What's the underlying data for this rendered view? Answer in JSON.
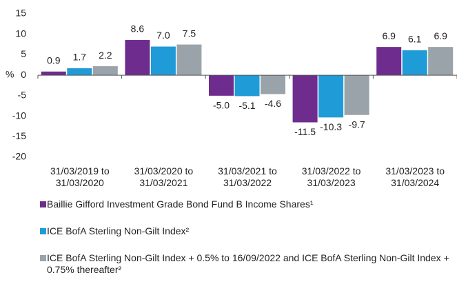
{
  "chart_data": {
    "type": "bar",
    "categories": [
      "31/03/2019 to 31/03/2020",
      "31/03/2020 to 31/03/2021",
      "31/03/2021 to 31/03/2022",
      "31/03/2022 to 31/03/2023",
      "31/03/2023 to 31/03/2024"
    ],
    "series": [
      {
        "name": "Baillie Gifford Investment Grade Bond Fund B Income Shares¹",
        "color": "#6e2c8e",
        "values": [
          0.9,
          8.6,
          -5.0,
          -11.5,
          6.9
        ]
      },
      {
        "name": "ICE BofA Sterling Non-Gilt Index²",
        "color": "#1f9bd7",
        "values": [
          1.7,
          7.0,
          -5.1,
          -10.3,
          6.1
        ]
      },
      {
        "name": "ICE BofA Sterling Non-Gilt Index + 0.5% to 16/09/2022 and ICE BofA Sterling Non-Gilt Index + 0.75% thereafter²",
        "color": "#9aa3a9",
        "values": [
          2.2,
          7.5,
          -4.6,
          -9.7,
          6.9
        ]
      }
    ],
    "value_labels": [
      [
        "0.9",
        "8.6",
        "-5.0",
        "-11.5",
        "6.9"
      ],
      [
        "1.7",
        "7.0",
        "-5.1",
        "-10.3",
        "6.1"
      ],
      [
        "2.2",
        "7.5",
        "-4.6",
        "-9.7",
        "6.9"
      ]
    ],
    "y_label": "%",
    "ylim": [
      -20,
      15
    ],
    "yticks": [
      15,
      10,
      5,
      0,
      -5,
      -10,
      -15,
      -20
    ],
    "grid": false
  }
}
